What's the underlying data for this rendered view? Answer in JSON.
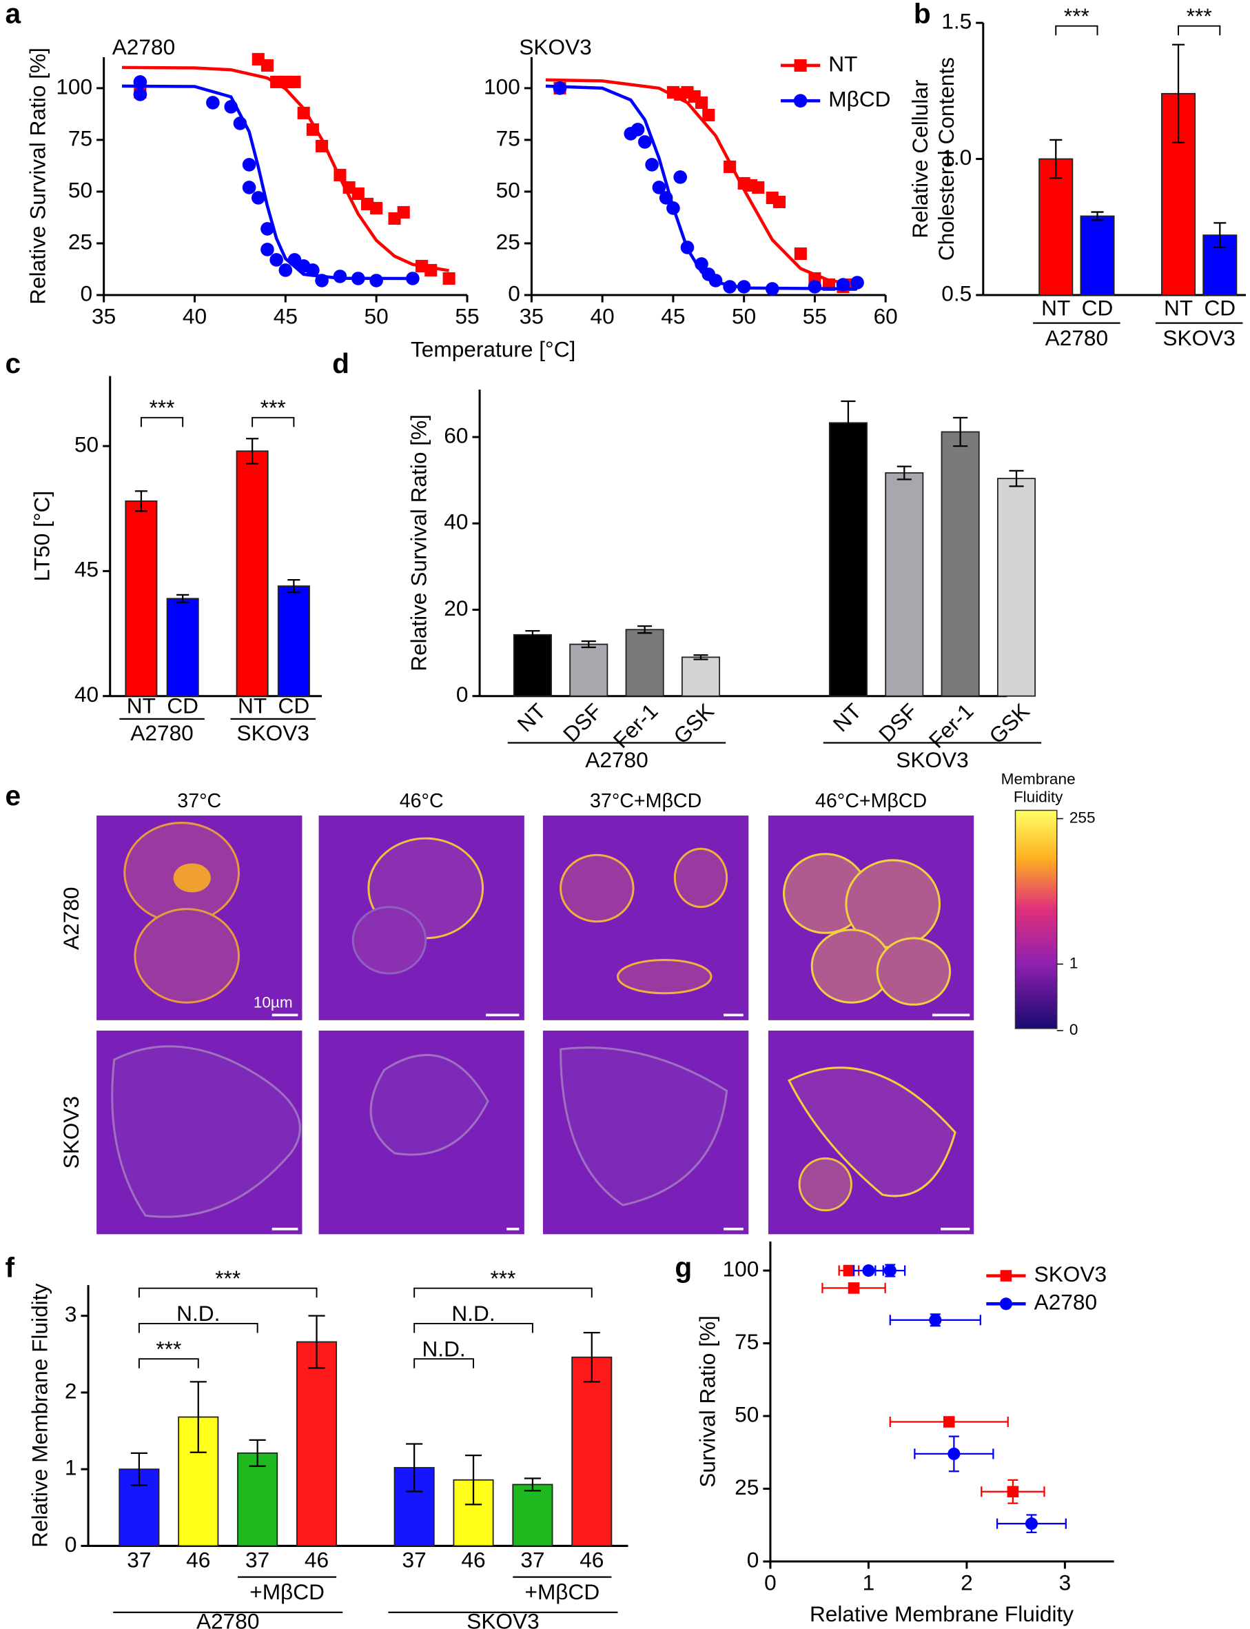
{
  "chart_data": [
    {
      "type": "scatter",
      "panel": "a",
      "title": "A2780",
      "ylabel": "Relative Survival Ratio [%]",
      "xlabel": "Temperature [°C]",
      "xlim": [
        35,
        55
      ],
      "xticks": [
        35,
        40,
        45,
        50,
        55
      ],
      "ylim": [
        0,
        115
      ],
      "yticks": [
        0,
        25,
        50,
        75,
        100
      ],
      "series": [
        {
          "color": "#ff0000",
          "marker": "square",
          "x": [
            37,
            37,
            43.5,
            44,
            44.5,
            45,
            45.5,
            46,
            46.5,
            47,
            48,
            48.5,
            49,
            49.5,
            50,
            51,
            51.5,
            52.5,
            53,
            54
          ],
          "values": [
            100,
            98,
            114,
            111,
            103,
            103,
            103,
            88,
            80,
            72,
            58,
            52,
            49,
            44,
            42,
            37,
            40,
            14,
            12,
            8
          ],
          "fit_x": [
            36,
            40,
            42,
            44,
            45,
            46,
            47,
            48,
            49,
            50,
            51,
            52,
            54
          ],
          "fit_values": [
            110,
            109.8,
            108.9,
            104.9,
            99.7,
            90.2,
            75.3,
            56.6,
            39.2,
            26.4,
            18.8,
            14.8,
            11.8
          ]
        },
        {
          "color": "#0000ff",
          "marker": "circle",
          "x": [
            37,
            37,
            41,
            42,
            42.5,
            43,
            43,
            43.5,
            44,
            44,
            44.5,
            45,
            45.5,
            46,
            46.5,
            47,
            48,
            49,
            50,
            52
          ],
          "values": [
            103,
            97,
            93,
            91,
            83,
            63,
            52,
            47,
            32,
            22,
            17,
            12,
            17,
            14,
            12,
            7,
            9,
            8,
            7,
            8
          ],
          "fit_x": [
            36,
            40,
            42,
            43,
            43.5,
            44,
            44.5,
            45,
            46,
            48,
            52
          ],
          "fit_values": [
            101,
            100.8,
            95.8,
            79,
            62,
            43.1,
            27.4,
            17.6,
            10,
            8.1,
            8
          ]
        }
      ]
    },
    {
      "type": "scatter",
      "title": "SKOV3",
      "legend": "upper right",
      "xlim": [
        35,
        60
      ],
      "xticks": [
        35,
        40,
        45,
        50,
        55,
        60
      ],
      "ylim": [
        0,
        115
      ],
      "yticks": [
        0,
        25,
        50,
        75,
        100
      ],
      "series": [
        {
          "name": "NT",
          "color": "#ff0000",
          "marker": "square",
          "x": [
            37,
            45,
            45.5,
            46,
            46.5,
            47,
            47.5,
            49,
            50,
            50.5,
            51,
            52,
            52.5,
            54,
            55,
            56,
            57,
            57.5
          ],
          "values": [
            100,
            98,
            97,
            98,
            96,
            93,
            87,
            62,
            54,
            53,
            52,
            47,
            45,
            20,
            8,
            5,
            4,
            5
          ],
          "fit_x": [
            36,
            40,
            44,
            46,
            48,
            50,
            52,
            54,
            56,
            58
          ],
          "fit_values": [
            104,
            103.5,
            100,
            93,
            77,
            51,
            26.7,
            12.8,
            7.1,
            5
          ]
        },
        {
          "name": "MβCD",
          "color": "#0000ff",
          "marker": "circle",
          "x": [
            37,
            42,
            42.5,
            43,
            43.5,
            44,
            44.5,
            45,
            45.5,
            46,
            47,
            47.5,
            48,
            49,
            50,
            52,
            55,
            57,
            58
          ],
          "values": [
            100,
            78,
            80,
            74,
            63,
            52,
            47,
            42,
            57,
            23,
            15,
            10,
            7,
            4,
            4,
            3,
            4,
            5,
            6
          ],
          "fit_x": [
            36,
            40,
            42,
            43,
            44,
            45,
            46,
            47,
            48,
            50,
            58
          ],
          "fit_values": [
            101,
            100,
            94.3,
            84.7,
            66.2,
            42.4,
            22.4,
            11.2,
            6.2,
            3.4,
            3
          ]
        }
      ]
    },
    {
      "type": "bar",
      "panel": "b",
      "ylabel": [
        "Relative Cellular",
        "Cholesterol Contents"
      ],
      "categories": [
        "NT",
        "CD",
        "NT",
        "CD"
      ],
      "groups": [
        "A2780",
        "SKOV3"
      ],
      "values": [
        1,
        0.79,
        1.24,
        0.72
      ],
      "errors": [
        0.07,
        0.015,
        0.18,
        0.045
      ],
      "colors": [
        "#ff0000",
        "#0000ff",
        "#ff0000",
        "#0000ff"
      ],
      "ylim": [
        0.5,
        1.5
      ],
      "yticks": [
        0.5,
        {
          "value": 1,
          "label": "1.0"
        },
        1.5
      ],
      "significance": [
        {
          "from": 0,
          "to": 1,
          "label": "***"
        },
        {
          "from": 2,
          "to": 3,
          "label": "***"
        }
      ]
    },
    {
      "type": "bar",
      "panel": "c",
      "ylabel": "LT50 [°C]",
      "categories": [
        "NT",
        "CD",
        "NT",
        "CD"
      ],
      "groups": [
        "A2780",
        "SKOV3"
      ],
      "values": [
        47.8,
        43.9,
        49.8,
        44.4
      ],
      "errors": [
        0.4,
        0.15,
        0.5,
        0.25
      ],
      "colors": [
        "#ff0000",
        "#0000ff",
        "#ff0000",
        "#0000ff"
      ],
      "ylim": [
        40,
        52.8
      ],
      "yticks": [
        40,
        45,
        50
      ],
      "significance": [
        {
          "from": 0,
          "to": 1,
          "label": "***"
        },
        {
          "from": 2,
          "to": 3,
          "label": "***"
        }
      ]
    },
    {
      "type": "bar",
      "panel": "d",
      "ylabel": "Relative Survival Ratio [%]",
      "label_rotation": -45,
      "categories": [
        "NT",
        "DSF",
        "Fer-1",
        "GSK",
        "NT",
        "DSF",
        "Fer-1",
        "GSK"
      ],
      "groups": [
        "A2780",
        "SKOV3"
      ],
      "values": [
        14.2,
        12,
        15.4,
        9,
        63.3,
        51.7,
        61.2,
        50.4
      ],
      "errors": [
        0.9,
        0.7,
        0.8,
        0.5,
        5,
        1.5,
        3.3,
        1.8
      ],
      "colors": [
        "#000000",
        "#a7a7ad",
        "#7a7a7a",
        "#d4d4d4",
        "#000000",
        "#a7a7ad",
        "#7a7a7a",
        "#d4d4d4"
      ],
      "ylim": [
        0,
        71
      ],
      "yticks": [
        0,
        20,
        40,
        60
      ]
    },
    {
      "type": "bar",
      "panel": "f",
      "ylabel": "Relative Membrane Fluidity",
      "categories": [
        "37",
        "46",
        "37",
        "46",
        "37",
        "46",
        "37",
        "46"
      ],
      "groups": [
        "A2780",
        "SKOV3"
      ],
      "values": [
        1,
        1.68,
        1.21,
        2.66,
        1.02,
        0.86,
        0.8,
        2.46
      ],
      "errors": [
        0.21,
        0.46,
        0.17,
        0.34,
        0.31,
        0.32,
        0.08,
        0.32
      ],
      "colors": [
        "#1515ff",
        "#ffff19",
        "#1fba1f",
        "#ff1a1a",
        "#1515ff",
        "#ffff19",
        "#1fba1f",
        "#ff1a1a"
      ],
      "ylim": [
        0,
        3.4
      ],
      "yticks": [
        0,
        1,
        2,
        3
      ],
      "sublabels": [
        {
          "from": 2,
          "to": 3,
          "label": "+MβCD"
        },
        {
          "from": 6,
          "to": 7,
          "label": "+MβCD"
        }
      ],
      "significance": [
        {
          "from": 0,
          "to": 1,
          "label": "***"
        },
        {
          "from": 0,
          "to": 2,
          "label": "N.D."
        },
        {
          "from": 0,
          "to": 3,
          "label": "***"
        },
        {
          "from": 4,
          "to": 5,
          "label": "N.D."
        },
        {
          "from": 4,
          "to": 6,
          "label": "N.D."
        },
        {
          "from": 4,
          "to": 7,
          "label": "***"
        }
      ]
    },
    {
      "type": "scatter",
      "panel": "g",
      "ylabel": "Survival Ratio [%]",
      "xlabel": "Relative Membrane Fluidity",
      "legend": "upper right",
      "xlim": [
        0,
        3.5
      ],
      "xticks": [
        0,
        1,
        2,
        3
      ],
      "ylim": [
        0,
        110
      ],
      "yticks": [
        0,
        25,
        50,
        75,
        100
      ],
      "series": [
        {
          "name": "SKOV3",
          "color": "#ff0000",
          "marker": "square",
          "x": [
            0.8,
            0.85,
            1.82,
            2.47
          ],
          "values": [
            100,
            94,
            48,
            24
          ],
          "xerr": [
            0.1,
            0.32,
            0.6,
            0.32
          ],
          "yerr": [
            0,
            0,
            0,
            4
          ]
        },
        {
          "name": "A2780",
          "color": "#0000ff",
          "marker": "circle",
          "x": [
            1,
            1.22,
            1.68,
            1.87,
            2.66
          ],
          "values": [
            100,
            100,
            83,
            37,
            13
          ],
          "xerr": [
            0.15,
            0.15,
            0.46,
            0.4,
            0.35
          ],
          "yerr": [
            0,
            2,
            2,
            6,
            3
          ]
        }
      ]
    }
  ],
  "panel_e": {
    "panel": "e",
    "columns": [
      "37°C",
      "46°C",
      "37°C+MβCD",
      "46°C+MβCD"
    ],
    "rows": [
      "A2780",
      "SKOV3"
    ],
    "scale_bar": "10µm",
    "colorbar": {
      "title": [
        "Membrane",
        "Fluidity"
      ],
      "ticks": [
        255,
        1,
        0
      ]
    }
  }
}
